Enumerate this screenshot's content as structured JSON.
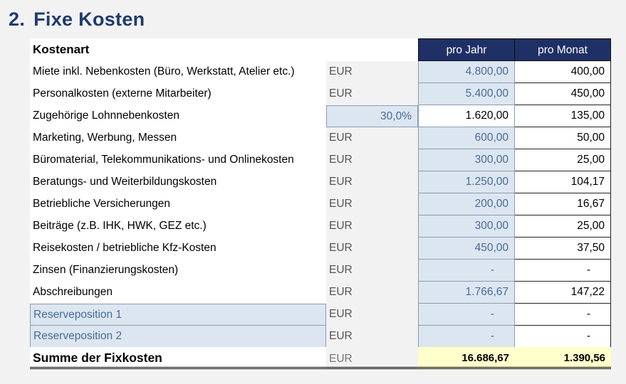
{
  "section": {
    "number": "2.",
    "title": "Fixe Kosten"
  },
  "header": {
    "label": "Kostenart",
    "year": "pro Jahr",
    "month": "pro Monat"
  },
  "rows": [
    {
      "label": "Miete inkl. Nebenkosten (Büro, Werkstatt, Atelier etc.)",
      "currency": "EUR",
      "year": "4.800,00",
      "month": "400,00"
    },
    {
      "label": "Personalkosten (externe Mitarbeiter)",
      "currency": "EUR",
      "year": "5.400,00",
      "month": "450,00"
    },
    {
      "label": "Zugehörige Lohnnebenkosten",
      "percent": "30,0%",
      "year": "1.620,00",
      "month": "135,00"
    },
    {
      "label": "Marketing, Werbung, Messen",
      "currency": "EUR",
      "year": "600,00",
      "month": "50,00"
    },
    {
      "label": "Büromaterial, Telekommunikations- und Onlinekosten",
      "currency": "EUR",
      "year": "300,00",
      "month": "25,00"
    },
    {
      "label": "Beratungs- und Weiterbildungskosten",
      "currency": "EUR",
      "year": "1.250,00",
      "month": "104,17"
    },
    {
      "label": "Betriebliche Versicherungen",
      "currency": "EUR",
      "year": "200,00",
      "month": "16,67"
    },
    {
      "label": "Beiträge (z.B. IHK, HWK, GEZ etc.)",
      "currency": "EUR",
      "year": "300,00",
      "month": "25,00"
    },
    {
      "label": "Reisekosten / betriebliche Kfz-Kosten",
      "currency": "EUR",
      "year": "450,00",
      "month": "37,50"
    },
    {
      "label": "Zinsen (Finanzierungskosten)",
      "currency": "EUR",
      "year": "-",
      "month": "-"
    },
    {
      "label": "Abschreibungen",
      "currency": "EUR",
      "year": "1.766,67",
      "month": "147,22"
    },
    {
      "label": "Reserveposition 1",
      "currency": "EUR",
      "year": "-",
      "month": "-"
    },
    {
      "label": "Reserveposition 2",
      "currency": "EUR",
      "year": "-",
      "month": "-"
    }
  ],
  "total": {
    "label": "Summe der Fixkosten",
    "currency": "EUR",
    "year": "16.686,67",
    "month": "1.390,56"
  }
}
